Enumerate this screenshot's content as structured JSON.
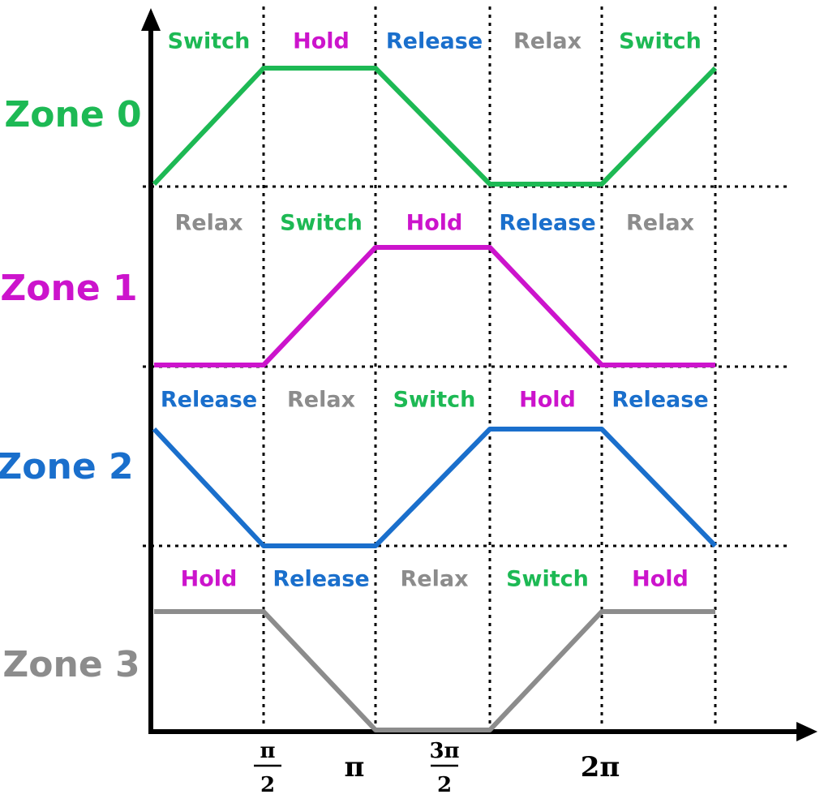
{
  "colors": {
    "Switch": "#1db954",
    "Hold": "#cc14cc",
    "Release": "#1a6fcc",
    "Relax": "#8c8c8c",
    "axis": "#000000",
    "grid": "#000000"
  },
  "zones": [
    {
      "label": "Zone 0",
      "color": "#1db954",
      "phases": [
        "Switch",
        "Hold",
        "Release",
        "Relax",
        "Switch"
      ],
      "levels": [
        0,
        1,
        1,
        0,
        0,
        1
      ]
    },
    {
      "label": "Zone 1",
      "color": "#cc14cc",
      "phases": [
        "Relax",
        "Switch",
        "Hold",
        "Release",
        "Relax"
      ],
      "levels": [
        0,
        0,
        1,
        1,
        0,
        0
      ]
    },
    {
      "label": "Zone 2",
      "color": "#1a6fcc",
      "phases": [
        "Release",
        "Relax",
        "Switch",
        "Hold",
        "Release"
      ],
      "levels": [
        1,
        0,
        0,
        1,
        1,
        0
      ]
    },
    {
      "label": "Zone 3",
      "color": "#8c8c8c",
      "phases": [
        "Hold",
        "Release",
        "Relax",
        "Switch",
        "Hold"
      ],
      "levels": [
        1,
        1,
        0,
        0,
        1,
        1
      ]
    }
  ],
  "x_ticks": [
    {
      "type": "frac",
      "num": "π",
      "num_prefix": "",
      "den": "2"
    },
    {
      "type": "text",
      "text": "π"
    },
    {
      "type": "frac",
      "num": "π",
      "num_prefix": "3",
      "den": "2"
    },
    {
      "type": "text",
      "text": "2π"
    }
  ]
}
